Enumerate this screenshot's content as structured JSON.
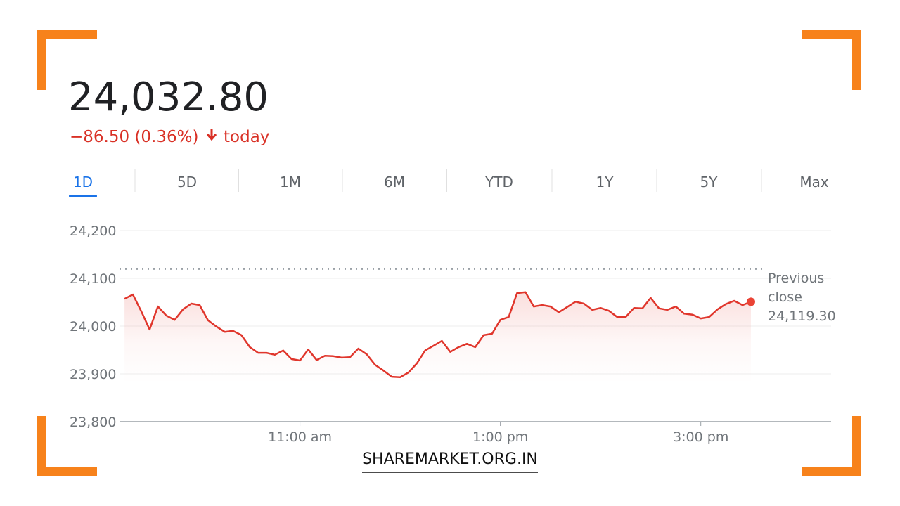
{
  "header": {
    "price": "24,032.80",
    "change": "−86.50 (0.36%)",
    "period": "today"
  },
  "tabs": [
    "1D",
    "5D",
    "1M",
    "6M",
    "YTD",
    "1Y",
    "5Y",
    "Max"
  ],
  "active_tab": "1D",
  "chart_data": {
    "type": "line",
    "color": "#e0362c",
    "x": [
      555,
      560,
      565,
      570,
      575,
      580,
      585,
      590,
      595,
      600,
      605,
      610,
      615,
      620,
      625,
      630,
      635,
      640,
      645,
      650,
      655,
      660,
      665,
      670,
      675,
      680,
      685,
      690,
      695,
      700,
      705,
      710,
      715,
      720,
      725,
      730,
      735,
      740,
      745,
      750,
      755,
      760,
      765,
      770,
      775,
      780,
      785,
      790,
      795,
      800,
      805,
      810,
      815,
      820,
      825,
      830,
      835,
      840,
      845,
      850,
      855,
      860,
      865,
      870,
      875,
      880,
      885,
      890,
      895,
      900,
      905,
      910,
      915,
      920,
      925,
      930
    ],
    "values": [
      24057,
      24066,
      24031,
      23993,
      24041,
      24022,
      24013,
      24035,
      24047,
      24044,
      24012,
      23999,
      23988,
      23990,
      23981,
      23956,
      23944,
      23944,
      23940,
      23949,
      23931,
      23928,
      23951,
      23929,
      23938,
      23937,
      23934,
      23935,
      23953,
      23941,
      23919,
      23907,
      23894,
      23893,
      23903,
      23922,
      23949,
      23959,
      23969,
      23946,
      23956,
      23963,
      23956,
      23981,
      23984,
      24013,
      24019,
      24069,
      24071,
      24041,
      24044,
      24041,
      24029,
      24040,
      24051,
      24047,
      24034,
      24038,
      24032,
      24019,
      24019,
      24038,
      24037,
      24059,
      24037,
      24034,
      24041,
      24026,
      24024,
      24016,
      24019,
      24035,
      24046,
      24053,
      24044,
      24051
    ],
    "xlim": [
      552,
      978
    ],
    "xticks": [
      {
        "value": 660,
        "label": "11:00 am"
      },
      {
        "value": 780,
        "label": "1:00 pm"
      },
      {
        "value": 900,
        "label": "3:00 pm"
      }
    ],
    "ylim": [
      23800,
      24200
    ],
    "yticks": [
      {
        "value": 23800,
        "label": "23,800"
      },
      {
        "value": 23900,
        "label": "23,900"
      },
      {
        "value": 24000,
        "label": "24,000"
      },
      {
        "value": 24100,
        "label": "24,100"
      },
      {
        "value": 24200,
        "label": "24,200"
      }
    ],
    "grid": true,
    "previous_close": {
      "value": 24119.3,
      "label": "24,119.30"
    },
    "previous_close_label": "Previous close"
  },
  "footer": "SHAREMARKET.ORG.IN"
}
